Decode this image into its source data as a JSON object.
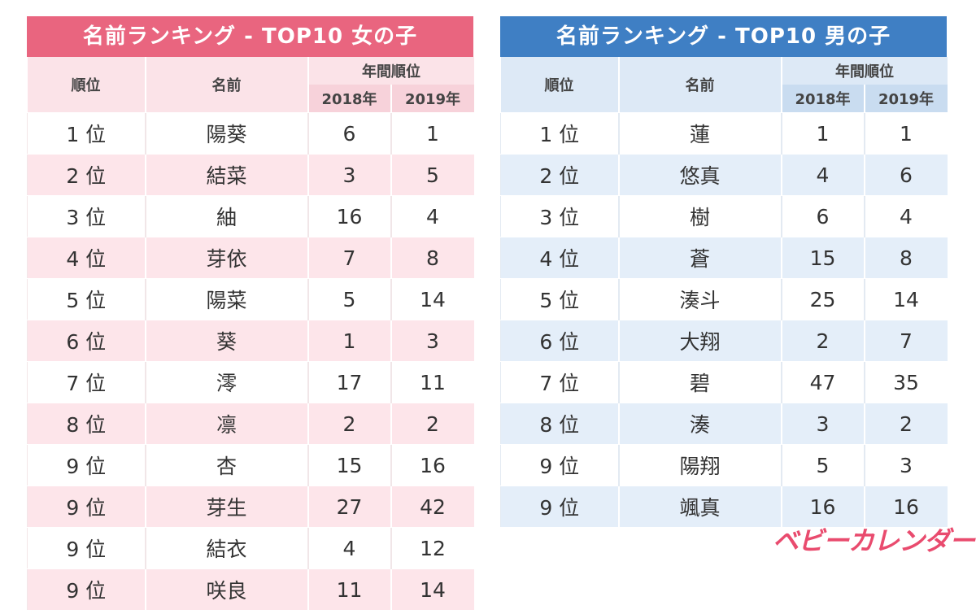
{
  "colors": {
    "girl_accent": "#e9657f",
    "boy_accent": "#3f7fc4",
    "brand": "#e94b6e"
  },
  "headers": {
    "rank": "順位",
    "name": "名前",
    "yearly_rank": "年間順位",
    "year1": "2018年",
    "year2": "2019年"
  },
  "girls": {
    "title": "名前ランキング - TOP10 女の子",
    "rows": [
      {
        "rank": "1 位",
        "name": "陽葵",
        "y2018": "6",
        "y2019": "1"
      },
      {
        "rank": "2 位",
        "name": "結菜",
        "y2018": "3",
        "y2019": "5"
      },
      {
        "rank": "3 位",
        "name": "紬",
        "y2018": "16",
        "y2019": "4"
      },
      {
        "rank": "4 位",
        "name": "芽依",
        "y2018": "7",
        "y2019": "8"
      },
      {
        "rank": "5 位",
        "name": "陽菜",
        "y2018": "5",
        "y2019": "14"
      },
      {
        "rank": "6 位",
        "name": "葵",
        "y2018": "1",
        "y2019": "3"
      },
      {
        "rank": "7 位",
        "name": "澪",
        "y2018": "17",
        "y2019": "11"
      },
      {
        "rank": "8 位",
        "name": "凛",
        "y2018": "2",
        "y2019": "2"
      },
      {
        "rank": "9 位",
        "name": "杏",
        "y2018": "15",
        "y2019": "16"
      },
      {
        "rank": "9 位",
        "name": "芽生",
        "y2018": "27",
        "y2019": "42"
      },
      {
        "rank": "9 位",
        "name": "結衣",
        "y2018": "4",
        "y2019": "12"
      },
      {
        "rank": "9 位",
        "name": "咲良",
        "y2018": "11",
        "y2019": "14"
      }
    ]
  },
  "boys": {
    "title": "名前ランキング - TOP10 男の子",
    "rows": [
      {
        "rank": "1 位",
        "name": "蓮",
        "y2018": "1",
        "y2019": "1"
      },
      {
        "rank": "2 位",
        "name": "悠真",
        "y2018": "4",
        "y2019": "6"
      },
      {
        "rank": "3 位",
        "name": "樹",
        "y2018": "6",
        "y2019": "4"
      },
      {
        "rank": "4 位",
        "name": "蒼",
        "y2018": "15",
        "y2019": "8"
      },
      {
        "rank": "5 位",
        "name": "湊斗",
        "y2018": "25",
        "y2019": "14"
      },
      {
        "rank": "6 位",
        "name": "大翔",
        "y2018": "2",
        "y2019": "7"
      },
      {
        "rank": "7 位",
        "name": "碧",
        "y2018": "47",
        "y2019": "35"
      },
      {
        "rank": "8 位",
        "name": "湊",
        "y2018": "3",
        "y2019": "2"
      },
      {
        "rank": "9 位",
        "name": "陽翔",
        "y2018": "5",
        "y2019": "3"
      },
      {
        "rank": "9 位",
        "name": "颯真",
        "y2018": "16",
        "y2019": "16"
      }
    ]
  },
  "brand_logo": "ベビーカレンダー"
}
